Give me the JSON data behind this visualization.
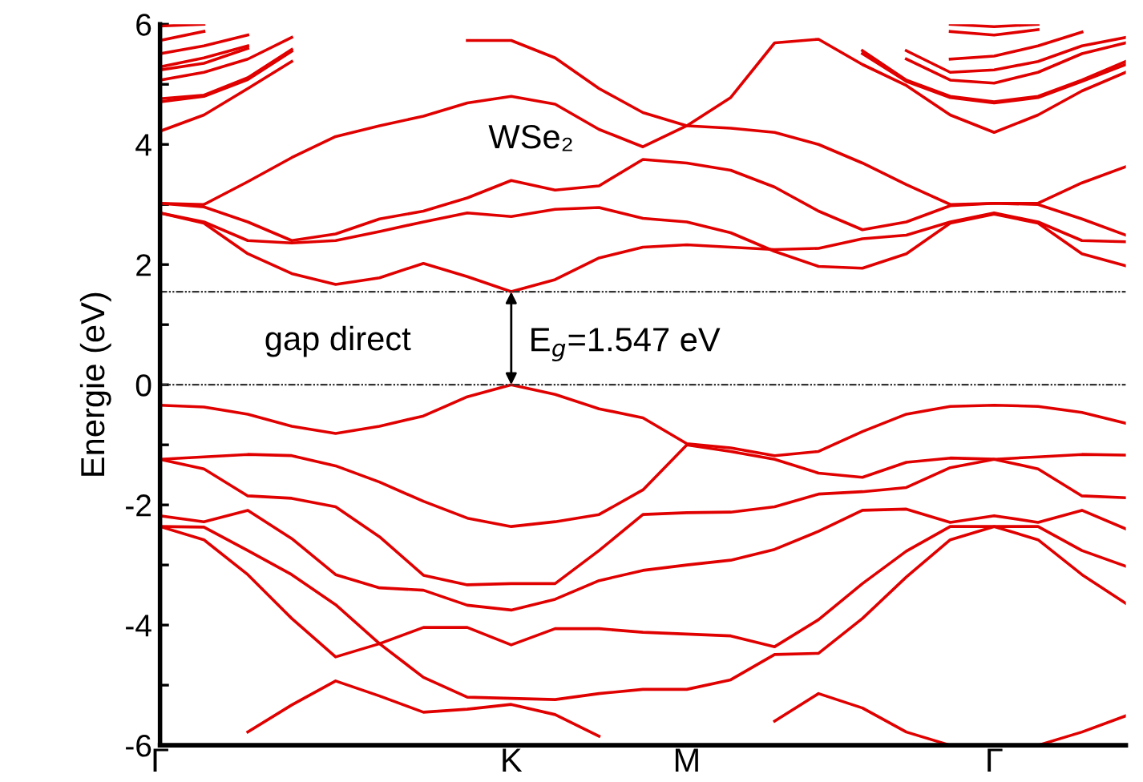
{
  "chart_data": {
    "type": "line",
    "ylabel": "Energie (eV)",
    "categories": [
      "Γ",
      null,
      null,
      null,
      null,
      null,
      null,
      null,
      "K",
      null,
      null,
      null,
      "M",
      null,
      null,
      null,
      null,
      null,
      null,
      "Γ",
      null,
      null,
      null
    ],
    "ylim": [
      -6,
      6
    ],
    "yticks": [
      -6,
      {
        "value": -5,
        "label": null
      },
      -4,
      {
        "value": -3,
        "label": null
      },
      -2,
      {
        "value": -1,
        "label": null
      },
      0,
      {
        "value": 1,
        "label": null
      },
      2,
      {
        "value": 3,
        "label": null
      },
      4,
      {
        "value": 5,
        "label": null
      },
      6
    ],
    "grid": false,
    "marker": "none",
    "line_style": "solid",
    "ref_lines": [
      {
        "axis": "y",
        "value": 0,
        "color": "#333333",
        "line_style": "dotted"
      },
      {
        "axis": "y",
        "value": 1.547,
        "color": "#333333",
        "line_style": "dotted"
      }
    ],
    "annotations": [
      "WSe₂",
      "gap direct",
      {
        "text": "E$_{g}$=1.547 eV",
        "x": "K",
        "y": 1.547
      }
    ],
    "series": [
      {
        "color": "#e00000",
        "values": [
          -0.34,
          -0.37,
          -0.49,
          -0.69,
          -0.81,
          -0.69,
          -0.52,
          -0.2,
          0,
          -0.16,
          -0.4,
          -0.55,
          -0.98,
          -1.05,
          -1.18,
          -1.11,
          -0.78,
          -0.49,
          -0.36,
          -0.34,
          -0.36,
          -0.46,
          -0.64
        ]
      },
      {
        "color": "#e00000",
        "values": [
          -1.24,
          -1.2,
          -1.16,
          -1.18,
          -1.35,
          -1.62,
          -1.94,
          -2.22,
          -2.36,
          -2.28,
          -2.16,
          -1.75,
          -1.0,
          -1.11,
          -1.24,
          -1.47,
          -1.54,
          -1.29,
          -1.22,
          -1.24,
          -1.2,
          -1.16,
          -1.17
        ]
      },
      {
        "color": "#e00000",
        "values": [
          -1.24,
          -1.4,
          -1.85,
          -1.89,
          -2.03,
          -2.53,
          -3.17,
          -3.33,
          -3.31,
          -3.31,
          -2.76,
          -2.16,
          -2.13,
          -2.12,
          -2.03,
          -1.82,
          -1.78,
          -1.71,
          -1.38,
          -1.24,
          -1.4,
          -1.85,
          -1.88
        ]
      },
      {
        "color": "#e00000",
        "values": [
          -2.18,
          -2.28,
          -2.09,
          -2.56,
          -3.16,
          -3.38,
          -3.42,
          -3.67,
          -3.75,
          -3.57,
          -3.26,
          -3.09,
          -3.0,
          -2.92,
          -2.74,
          -2.44,
          -2.09,
          -2.07,
          -2.29,
          -2.18,
          -2.29,
          -2.09,
          -2.4
        ]
      },
      {
        "color": "#e00000",
        "values": [
          -2.36,
          -2.37,
          -2.76,
          -3.16,
          -3.66,
          -4.31,
          -4.04,
          -4.04,
          -4.33,
          -4.06,
          -4.06,
          -4.12,
          -4.15,
          -4.18,
          -4.36,
          -3.91,
          -3.31,
          -2.77,
          -2.36,
          -2.36,
          -2.36,
          -2.76,
          -3.02
        ]
      },
      {
        "color": "#e00000",
        "values": [
          -2.36,
          -2.58,
          -3.16,
          -3.89,
          -4.53,
          -4.31,
          -4.87,
          -5.2,
          -5.22,
          -5.24,
          -5.14,
          -5.07,
          -5.07,
          -4.91,
          -4.49,
          -4.47,
          -3.89,
          -3.2,
          -2.58,
          -2.36,
          -2.58,
          -3.16,
          -3.64
        ]
      },
      {
        "color": "#e00000",
        "values": [
          null,
          null,
          -5.78,
          -5.33,
          -4.93,
          -5.18,
          -5.45,
          -5.4,
          -5.32,
          -5.49,
          -5.85,
          null,
          null,
          null,
          -5.6,
          -5.14,
          -5.38,
          -5.78,
          -6.0,
          null,
          -6.0,
          -5.78,
          -5.51
        ]
      },
      {
        "color": "#e00000",
        "values": [
          3.02,
          3.0,
          3.38,
          3.78,
          4.13,
          4.31,
          4.47,
          4.69,
          4.8,
          4.67,
          4.25,
          3.96,
          4.31,
          4.78,
          5.69,
          5.75,
          5.33,
          4.98,
          4.49,
          4.2,
          4.49,
          4.89,
          5.2
        ]
      },
      {
        "color": "#e00000",
        "values": [
          3.02,
          2.96,
          2.71,
          2.4,
          2.51,
          2.76,
          2.89,
          3.11,
          3.4,
          3.24,
          3.31,
          3.75,
          3.69,
          3.57,
          3.29,
          2.89,
          2.58,
          2.71,
          2.98,
          3.02,
          3.0,
          2.76,
          2.49
        ]
      },
      {
        "color": "#e00000",
        "values": [
          2.86,
          2.71,
          2.4,
          2.36,
          2.4,
          2.55,
          2.71,
          2.86,
          2.8,
          2.92,
          2.95,
          2.77,
          2.71,
          2.53,
          2.22,
          1.97,
          1.94,
          2.18,
          2.69,
          2.84,
          2.69,
          2.18,
          1.98
        ]
      },
      {
        "color": "#e00000",
        "values": [
          2.86,
          2.69,
          2.18,
          1.85,
          1.67,
          1.78,
          2.02,
          1.8,
          1.55,
          1.75,
          2.11,
          2.29,
          2.33,
          2.29,
          2.25,
          2.27,
          2.43,
          2.49,
          2.71,
          2.86,
          2.71,
          2.4,
          2.38
        ]
      },
      {
        "color": "#e00000",
        "values": [
          null,
          null,
          null,
          null,
          null,
          null,
          null,
          5.73,
          5.73,
          5.44,
          4.93,
          4.53,
          4.31,
          4.27,
          4.2,
          4.0,
          3.69,
          3.33,
          3.0,
          3.02,
          3.02,
          3.36,
          3.63
        ]
      },
      {
        "color": "#e00000",
        "values": [
          4.22,
          4.49,
          4.93,
          5.38,
          null,
          null,
          null,
          null,
          null,
          null,
          null,
          null,
          null,
          null,
          null,
          null,
          null,
          null,
          null,
          null,
          null,
          null,
          null
        ]
      },
      {
        "color": "#e00000",
        "values": [
          4.71,
          4.8,
          5.08,
          5.55,
          null,
          null,
          null,
          null,
          null,
          null,
          null,
          null,
          null,
          null,
          null,
          null,
          null,
          null,
          null,
          null,
          null,
          null,
          null
        ]
      },
      {
        "color": "#e00000",
        "values": [
          4.76,
          4.82,
          5.11,
          5.58,
          null,
          null,
          null,
          null,
          null,
          null,
          null,
          null,
          null,
          null,
          null,
          null,
          null,
          null,
          null,
          null,
          null,
          null,
          null
        ]
      },
      {
        "color": "#e00000",
        "values": [
          5.07,
          5.2,
          5.42,
          5.78,
          null,
          null,
          null,
          null,
          null,
          null,
          null,
          null,
          null,
          null,
          null,
          null,
          null,
          null,
          null,
          null,
          null,
          null,
          null
        ]
      },
      {
        "color": "#e00000",
        "values": [
          5.24,
          5.35,
          5.6,
          null,
          null,
          null,
          null,
          null,
          null,
          null,
          null,
          null,
          null,
          null,
          null,
          null,
          null,
          null,
          null,
          null,
          null,
          null,
          null
        ]
      },
      {
        "color": "#e00000",
        "values": [
          5.29,
          5.44,
          5.64,
          null,
          null,
          null,
          null,
          null,
          null,
          null,
          null,
          null,
          null,
          null,
          null,
          null,
          null,
          null,
          null,
          null,
          null,
          null,
          null
        ]
      },
      {
        "color": "#e00000",
        "values": [
          5.51,
          5.64,
          5.82,
          null,
          null,
          null,
          null,
          null,
          null,
          null,
          null,
          null,
          null,
          null,
          null,
          null,
          null,
          null,
          null,
          null,
          null,
          null,
          null
        ]
      },
      {
        "color": "#e00000",
        "values": [
          5.73,
          5.88,
          null,
          null,
          null,
          null,
          null,
          null,
          null,
          null,
          null,
          null,
          null,
          null,
          null,
          null,
          null,
          null,
          null,
          null,
          null,
          null,
          null
        ]
      },
      {
        "color": "#e00000",
        "values": [
          5.97,
          6.0,
          null,
          null,
          null,
          null,
          null,
          null,
          null,
          null,
          null,
          null,
          null,
          null,
          null,
          null,
          null,
          null,
          null,
          null,
          null,
          null,
          null
        ]
      },
      {
        "color": "#e00000",
        "values": [
          null,
          null,
          null,
          null,
          null,
          null,
          null,
          null,
          null,
          null,
          null,
          null,
          null,
          null,
          null,
          null,
          5.56,
          5.07,
          4.8,
          4.71,
          4.8,
          5.07,
          5.38
        ]
      },
      {
        "color": "#e00000",
        "values": [
          null,
          null,
          null,
          null,
          null,
          null,
          null,
          null,
          null,
          null,
          null,
          null,
          null,
          null,
          null,
          null,
          5.51,
          5.05,
          4.78,
          4.69,
          4.78,
          5.05,
          5.33
        ]
      },
      {
        "color": "#e00000",
        "values": [
          null,
          null,
          null,
          null,
          null,
          null,
          null,
          null,
          null,
          null,
          null,
          null,
          null,
          null,
          null,
          null,
          null,
          5.42,
          5.07,
          5.02,
          5.2,
          5.51,
          5.69
        ]
      },
      {
        "color": "#e00000",
        "values": [
          null,
          null,
          null,
          null,
          null,
          null,
          null,
          null,
          null,
          null,
          null,
          null,
          null,
          null,
          null,
          null,
          null,
          5.56,
          5.2,
          5.24,
          5.38,
          5.64,
          5.78
        ]
      },
      {
        "color": "#e00000",
        "values": [
          null,
          null,
          null,
          null,
          null,
          null,
          null,
          null,
          null,
          null,
          null,
          null,
          null,
          null,
          null,
          null,
          null,
          null,
          5.42,
          5.47,
          5.64,
          5.87,
          null
        ]
      },
      {
        "color": "#e00000",
        "values": [
          null,
          null,
          null,
          null,
          null,
          null,
          null,
          null,
          null,
          null,
          null,
          null,
          null,
          null,
          null,
          null,
          null,
          null,
          5.88,
          5.82,
          5.91,
          null,
          null
        ]
      },
      {
        "color": "#e00000",
        "values": [
          null,
          null,
          null,
          null,
          null,
          null,
          null,
          null,
          null,
          null,
          null,
          null,
          null,
          null,
          null,
          null,
          null,
          null,
          6.0,
          5.96,
          6.0,
          null,
          null
        ]
      }
    ]
  }
}
